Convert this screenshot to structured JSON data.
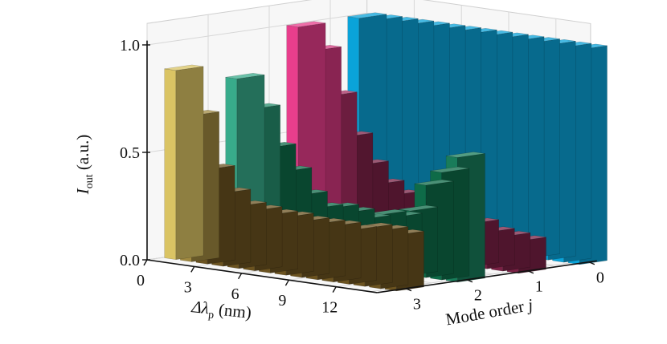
{
  "chart_data": {
    "type": "bar3d",
    "z_axis": {
      "label_main": "I",
      "label_sub": "out",
      "label_unit": "(a.u.)",
      "ticks": [
        "0.0",
        "0.5",
        "1.0"
      ],
      "lim": [
        0,
        1
      ]
    },
    "x_axis": {
      "label_delta": "Δ",
      "label_lambda": "λ",
      "label_sub": "p",
      "label_unit": "(nm)",
      "ticks": [
        "0",
        "3",
        "6",
        "9",
        "12"
      ]
    },
    "y_axis": {
      "label_text": "Mode order",
      "label_var": "j",
      "ticks": [
        "0",
        "1",
        "2",
        "3"
      ]
    },
    "series": [
      {
        "mode": 0,
        "color": "#0aa3d9",
        "values": [
          1.0,
          1.0,
          1.0,
          1.0,
          1.0,
          1.0,
          1.0,
          1.0,
          1.0,
          1.0,
          1.0,
          1.0,
          1.0,
          1.0,
          1.0
        ]
      },
      {
        "mode": 1,
        "color": "#7a2145",
        "highlight": "#e83e8c",
        "values": [
          1.0,
          0.9,
          0.7,
          0.52,
          0.4,
          0.32,
          0.28,
          0.25,
          0.23,
          0.21,
          0.2,
          0.2,
          0.17,
          0.16,
          0.15
        ]
      },
      {
        "mode": 2,
        "color": "#0e6b48",
        "highlight": "#54d6b8",
        "values": [
          0.8,
          0.67,
          0.5,
          0.4,
          0.3,
          0.25,
          0.26,
          0.25,
          0.23,
          0.26,
          0.26,
          0.3,
          0.43,
          0.5,
          0.58
        ]
      },
      {
        "mode": 3,
        "color": "#6b5320",
        "highlight": "#fde87a",
        "values": [
          0.88,
          0.68,
          0.44,
          0.34,
          0.29,
          0.28,
          0.27,
          0.27,
          0.26,
          0.26,
          0.26,
          0.25,
          0.27,
          0.27,
          0.26
        ]
      }
    ]
  }
}
